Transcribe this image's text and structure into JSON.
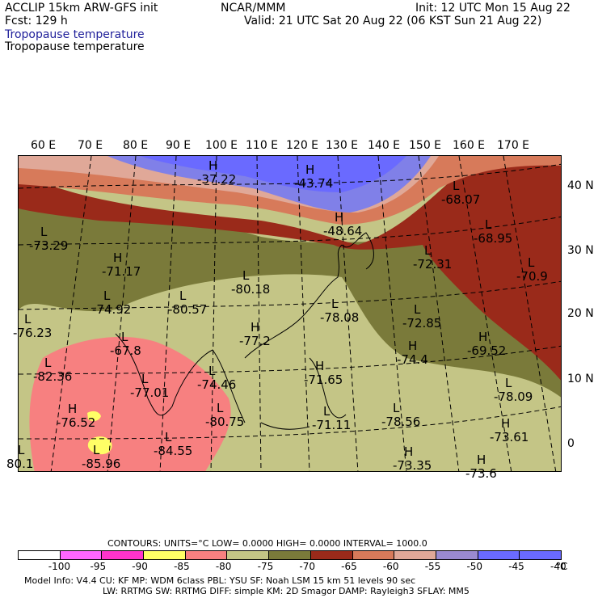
{
  "header": {
    "model": "ACCLIP 15km ARW-GFS init",
    "fcst": "Fcst:  129 h",
    "org": "NCAR/MMM",
    "init": "Init: 12 UTC Mon 15 Aug 22",
    "valid": "Valid: 21 UTC Sat 20 Aug 22 (06 KST Sun 21 Aug 22)",
    "field1": "Tropopause temperature",
    "field2": "Tropopause temperature"
  },
  "lon_labels": [
    "60 E",
    "70 E",
    "80 E",
    "90 E",
    "100 E",
    "110 E",
    "120 E",
    "130 E",
    "140 E",
    "150 E",
    "160 E",
    "170 E"
  ],
  "lat_labels": [
    "40 N",
    "30 N",
    "20 N",
    "10 N",
    "0"
  ],
  "markers": [
    {
      "letter": "H",
      "value": "-37.22"
    },
    {
      "letter": "H",
      "value": "-43.74"
    },
    {
      "letter": "H",
      "value": "-48.64"
    },
    {
      "letter": "L",
      "value": "-68.07"
    },
    {
      "letter": "L",
      "value": "-68.95"
    },
    {
      "letter": "L",
      "value": "-73.29"
    },
    {
      "letter": "H",
      "value": "-71.17"
    },
    {
      "letter": "L",
      "value": "-80.18"
    },
    {
      "letter": "L",
      "value": "-72.31"
    },
    {
      "letter": "L",
      "value": "-70.9"
    },
    {
      "letter": "L",
      "value": "-74.92"
    },
    {
      "letter": "L",
      "value": "-80.57"
    },
    {
      "letter": "L",
      "value": "-78.08"
    },
    {
      "letter": "L",
      "value": "-72.85"
    },
    {
      "letter": "L",
      "value": "-76.23"
    },
    {
      "letter": "H",
      "value": "-77.2"
    },
    {
      "letter": "H",
      "value": "-69.52"
    },
    {
      "letter": "L",
      "value": "-67.8"
    },
    {
      "letter": "H",
      "value": "-74.4"
    },
    {
      "letter": "L",
      "value": "-82.36"
    },
    {
      "letter": "L",
      "value": "-74.46"
    },
    {
      "letter": "H",
      "value": "-71.65"
    },
    {
      "letter": "L",
      "value": "-77.01"
    },
    {
      "letter": "L",
      "value": "-78.09"
    },
    {
      "letter": "H",
      "value": "-76.52"
    },
    {
      "letter": "L",
      "value": "-80.75"
    },
    {
      "letter": "L",
      "value": "-78.56"
    },
    {
      "letter": "H",
      "value": "-73.61"
    },
    {
      "letter": "L",
      "value": "-84.55"
    },
    {
      "letter": "H",
      "value": "-73.35"
    },
    {
      "letter": "L",
      "value": "-85.96"
    },
    {
      "letter": "L",
      "value": "80.1"
    },
    {
      "letter": "L",
      "value": "-71.11"
    },
    {
      "letter": "H",
      "value": "-73.6"
    }
  ],
  "contours_line": "CONTOURS:  UNITS=°C  LOW=  0.0000        HIGH=  0.0000       INTERVAL=   1000.0",
  "colorbar": {
    "colors": [
      "#ffffff",
      "#ff66ff",
      "#ff33cc",
      "#ffff66",
      "#f78080",
      "#c4c586",
      "#7a7a3a",
      "#9a2a1a",
      "#d77a5a",
      "#e0a898",
      "#9a8ad0",
      "#6a6aff",
      "#6a6aff"
    ],
    "ticks": [
      "-100",
      "-95",
      "-90",
      "-85",
      "-80",
      "-75",
      "-70",
      "-65",
      "-60",
      "-55",
      "-50",
      "-45",
      "-40",
      "°C"
    ]
  },
  "model_info": "Model Info: V4.4       CU: KF      MP: WDM 6class   PBL: YSU        SF: Noah LSM     15 km    51 levels    90 sec",
  "model_info2": "LW: RRTMG    SW: RRTMG   DIFF: simple KM: 2D Smagor DAMP: Rayleigh3  SFLAY: MM5"
}
